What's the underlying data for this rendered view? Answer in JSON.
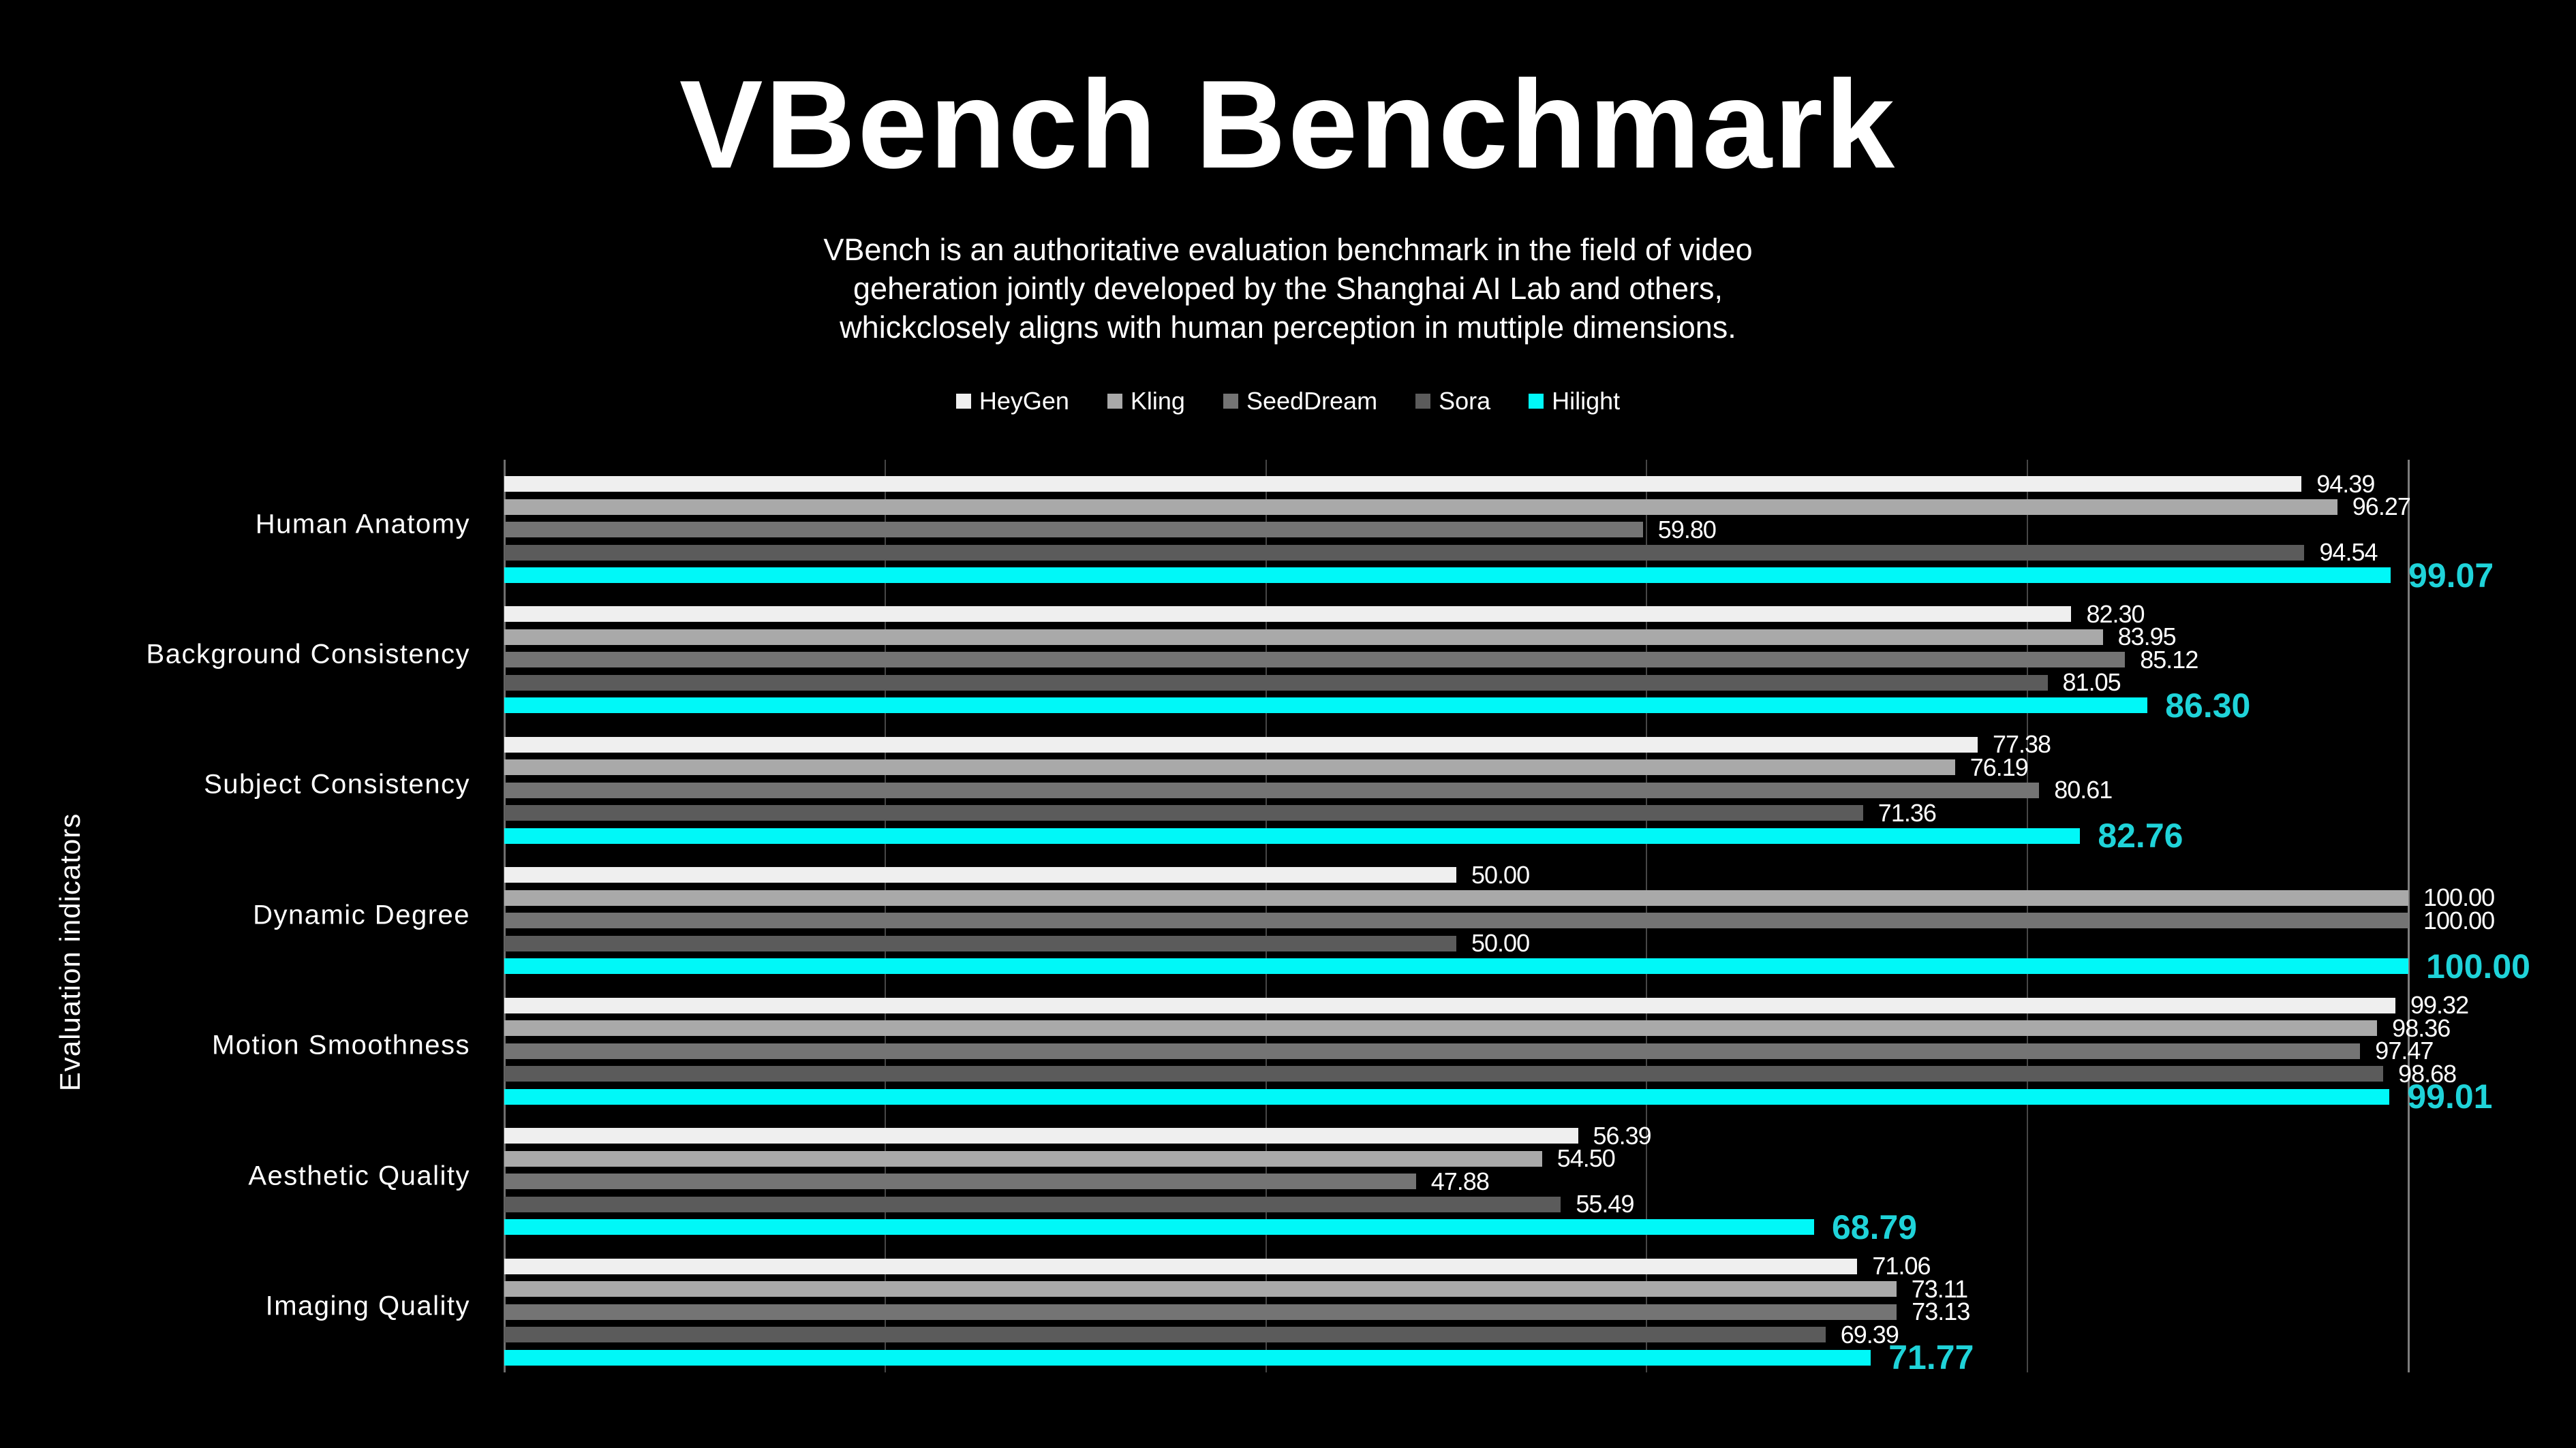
{
  "page": {
    "background_color": "#000000",
    "text_color": "#ffffff"
  },
  "header": {
    "title": "VBench Benchmark",
    "subtitle_lines": [
      "VBench is an authoritative evaluation benchmark in the field of video",
      "geheration jointly developed by the Shanghai AI Lab and others,",
      "whickclosely aligns with human perception in muttiple dimensions."
    ]
  },
  "chart_data": {
    "type": "bar",
    "orientation": "horizontal",
    "title": "VBench Benchmark",
    "xlabel": "",
    "ylabel": "Evaluation indicators",
    "xlim": [
      0,
      100
    ],
    "gridline_step": 20,
    "grid": true,
    "legend_position": "top-center",
    "value_labels": "outside-end, two decimals",
    "categories": [
      "Human Anatomy",
      "Background Consistency",
      "Subject Consistency",
      "Dynamic Degree",
      "Motion Smoothness",
      "Aesthetic Quality",
      "Imaging Quality"
    ],
    "series": [
      {
        "name": "HeyGen",
        "color": "#efefef",
        "highlight": false,
        "values": [
          94.39,
          82.3,
          77.38,
          50.0,
          99.32,
          56.39,
          71.06
        ]
      },
      {
        "name": "Kling",
        "color": "#a9a9a9",
        "highlight": false,
        "values": [
          96.27,
          83.95,
          76.19,
          100.0,
          98.36,
          54.5,
          73.11
        ]
      },
      {
        "name": "SeedDream",
        "color": "#747474",
        "highlight": false,
        "values": [
          59.8,
          85.12,
          80.61,
          100.0,
          97.47,
          47.88,
          73.13
        ]
      },
      {
        "name": "Sora",
        "color": "#5b5b5b",
        "highlight": false,
        "values": [
          94.54,
          81.05,
          71.36,
          50.0,
          98.68,
          55.49,
          69.39
        ]
      },
      {
        "name": "Hilight",
        "color": "#00f8f8",
        "highlight": true,
        "values": [
          99.07,
          86.3,
          82.76,
          100.0,
          99.01,
          68.79,
          71.77
        ]
      }
    ],
    "colors": {
      "axis_line": "#6e6e6e",
      "gridline": "#464646",
      "end_gridline": "#7d7d7d",
      "value_label": "#ffffff",
      "highlight_value_label": "#1fd3d9"
    }
  }
}
